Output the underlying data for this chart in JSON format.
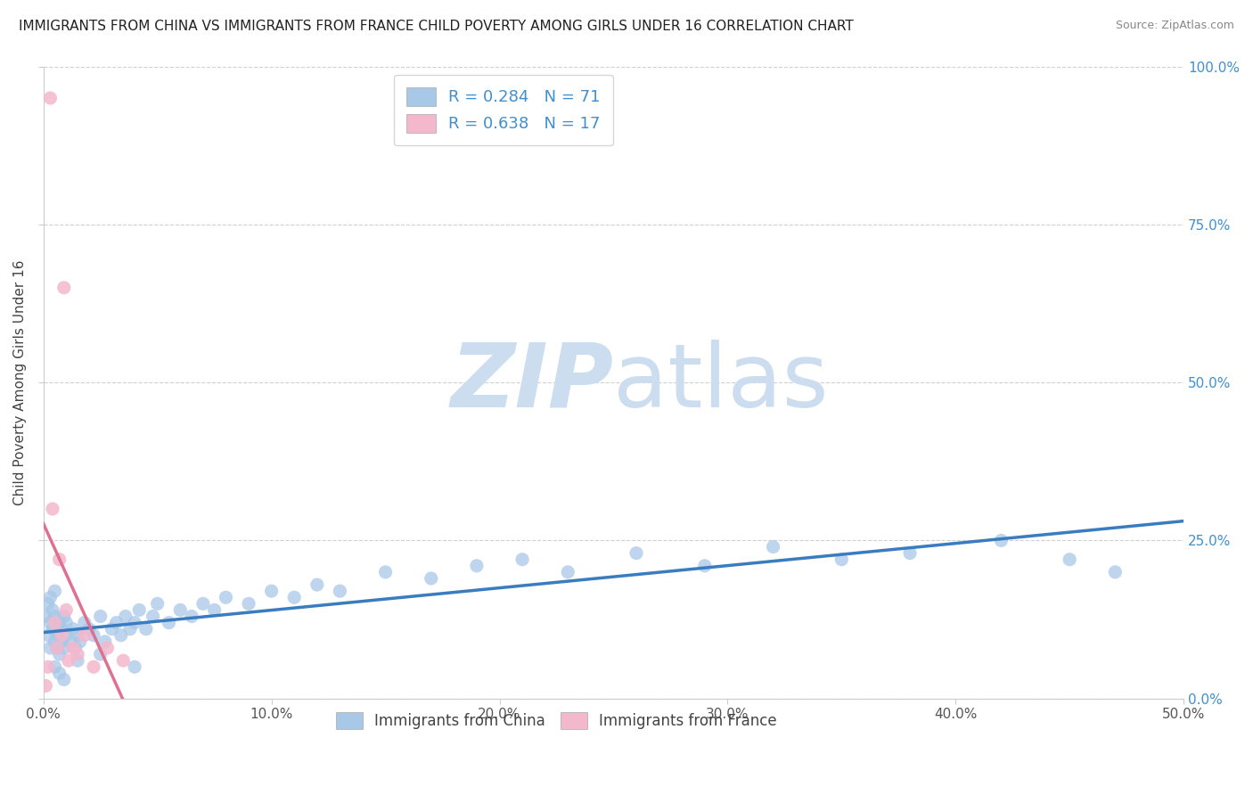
{
  "title": "IMMIGRANTS FROM CHINA VS IMMIGRANTS FROM FRANCE CHILD POVERTY AMONG GIRLS UNDER 16 CORRELATION CHART",
  "source": "Source: ZipAtlas.com",
  "ylabel": "Child Poverty Among Girls Under 16",
  "china_R": 0.284,
  "china_N": 71,
  "france_R": 0.638,
  "france_N": 17,
  "china_color": "#a8c8e8",
  "france_color": "#f4b8cc",
  "china_line_color": "#3a7cc0",
  "france_line_color": "#e07090",
  "right_tick_color": "#4090d0",
  "legend_text_color": "#4090d0",
  "xlim": [
    0.0,
    0.5
  ],
  "ylim": [
    0.0,
    1.0
  ],
  "xtick_vals": [
    0.0,
    0.1,
    0.2,
    0.3,
    0.4,
    0.5
  ],
  "xtick_labels": [
    "0.0%",
    "10.0%",
    "20.0%",
    "30.0%",
    "40.0%",
    "50.0%"
  ],
  "ytick_vals": [
    0.0,
    0.25,
    0.5,
    0.75,
    1.0
  ],
  "ytick_labels": [
    "0.0%",
    "25.0%",
    "50.0%",
    "75.0%",
    "100.0%"
  ],
  "china_x": [
    0.001,
    0.002,
    0.002,
    0.003,
    0.003,
    0.003,
    0.004,
    0.004,
    0.005,
    0.005,
    0.005,
    0.006,
    0.006,
    0.007,
    0.007,
    0.008,
    0.008,
    0.009,
    0.009,
    0.01,
    0.01,
    0.012,
    0.013,
    0.014,
    0.015,
    0.016,
    0.018,
    0.02,
    0.022,
    0.025,
    0.027,
    0.03,
    0.032,
    0.034,
    0.036,
    0.038,
    0.04,
    0.042,
    0.045,
    0.048,
    0.05,
    0.055,
    0.06,
    0.065,
    0.07,
    0.075,
    0.08,
    0.09,
    0.1,
    0.11,
    0.12,
    0.13,
    0.15,
    0.17,
    0.19,
    0.21,
    0.23,
    0.26,
    0.29,
    0.32,
    0.35,
    0.38,
    0.42,
    0.45,
    0.47,
    0.005,
    0.007,
    0.009,
    0.015,
    0.025,
    0.04
  ],
  "china_y": [
    0.13,
    0.1,
    0.15,
    0.08,
    0.12,
    0.16,
    0.11,
    0.14,
    0.09,
    0.13,
    0.17,
    0.1,
    0.08,
    0.12,
    0.07,
    0.11,
    0.09,
    0.13,
    0.08,
    0.1,
    0.12,
    0.09,
    0.11,
    0.08,
    0.1,
    0.09,
    0.12,
    0.11,
    0.1,
    0.13,
    0.09,
    0.11,
    0.12,
    0.1,
    0.13,
    0.11,
    0.12,
    0.14,
    0.11,
    0.13,
    0.15,
    0.12,
    0.14,
    0.13,
    0.15,
    0.14,
    0.16,
    0.15,
    0.17,
    0.16,
    0.18,
    0.17,
    0.2,
    0.19,
    0.21,
    0.22,
    0.2,
    0.23,
    0.21,
    0.24,
    0.22,
    0.23,
    0.25,
    0.22,
    0.2,
    0.05,
    0.04,
    0.03,
    0.06,
    0.07,
    0.05
  ],
  "france_x": [
    0.001,
    0.002,
    0.003,
    0.004,
    0.005,
    0.006,
    0.007,
    0.008,
    0.009,
    0.01,
    0.011,
    0.013,
    0.015,
    0.018,
    0.022,
    0.028,
    0.035
  ],
  "france_y": [
    0.02,
    0.05,
    0.95,
    0.3,
    0.12,
    0.08,
    0.22,
    0.1,
    0.65,
    0.14,
    0.06,
    0.08,
    0.07,
    0.1,
    0.05,
    0.08,
    0.06
  ],
  "france_line_x0": 0.0,
  "france_line_x1": 0.05,
  "china_line_x0": 0.0,
  "china_line_x1": 0.5
}
